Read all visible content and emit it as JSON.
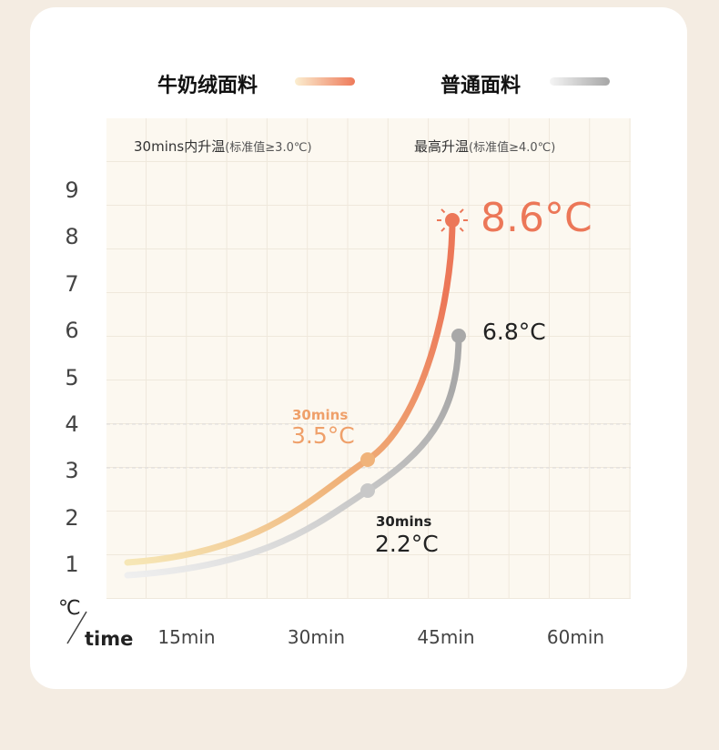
{
  "chart_data": {
    "type": "line",
    "legend": {
      "placement": "top"
    },
    "series": [
      {
        "name": "牛奶绒面料",
        "color_start": "#f6e7b6",
        "color_end": "#ec7758",
        "points": [
          {
            "label": "30mins",
            "value": 3.5,
            "text": "3.5°C"
          },
          {
            "label": "max",
            "value": 8.6,
            "text": "8.6°C"
          }
        ]
      },
      {
        "name": "普通面料",
        "color_start": "#efefef",
        "color_end": "#a8a8a8",
        "points": [
          {
            "label": "30mins",
            "value": 2.2,
            "text": "2.2°C"
          },
          {
            "label": "max",
            "value": 6.8,
            "text": "6.8°C"
          }
        ]
      }
    ],
    "headers": {
      "left": "30mins内升温",
      "left_note": "(标准值≥3.0℃)",
      "right": "最高升温",
      "right_note": "(标准值≥4.0℃)"
    },
    "y_ticks": [
      "9",
      "8",
      "7",
      "6",
      "5",
      "4",
      "3",
      "2",
      "1"
    ],
    "x_ticks": [
      "15min",
      "30min",
      "45min",
      "60min"
    ],
    "ylabel": "℃",
    "xlabel": "time",
    "ylim": [
      1,
      9
    ],
    "grid": true,
    "point_label": "30mins",
    "max_icon": "sun-icon"
  }
}
